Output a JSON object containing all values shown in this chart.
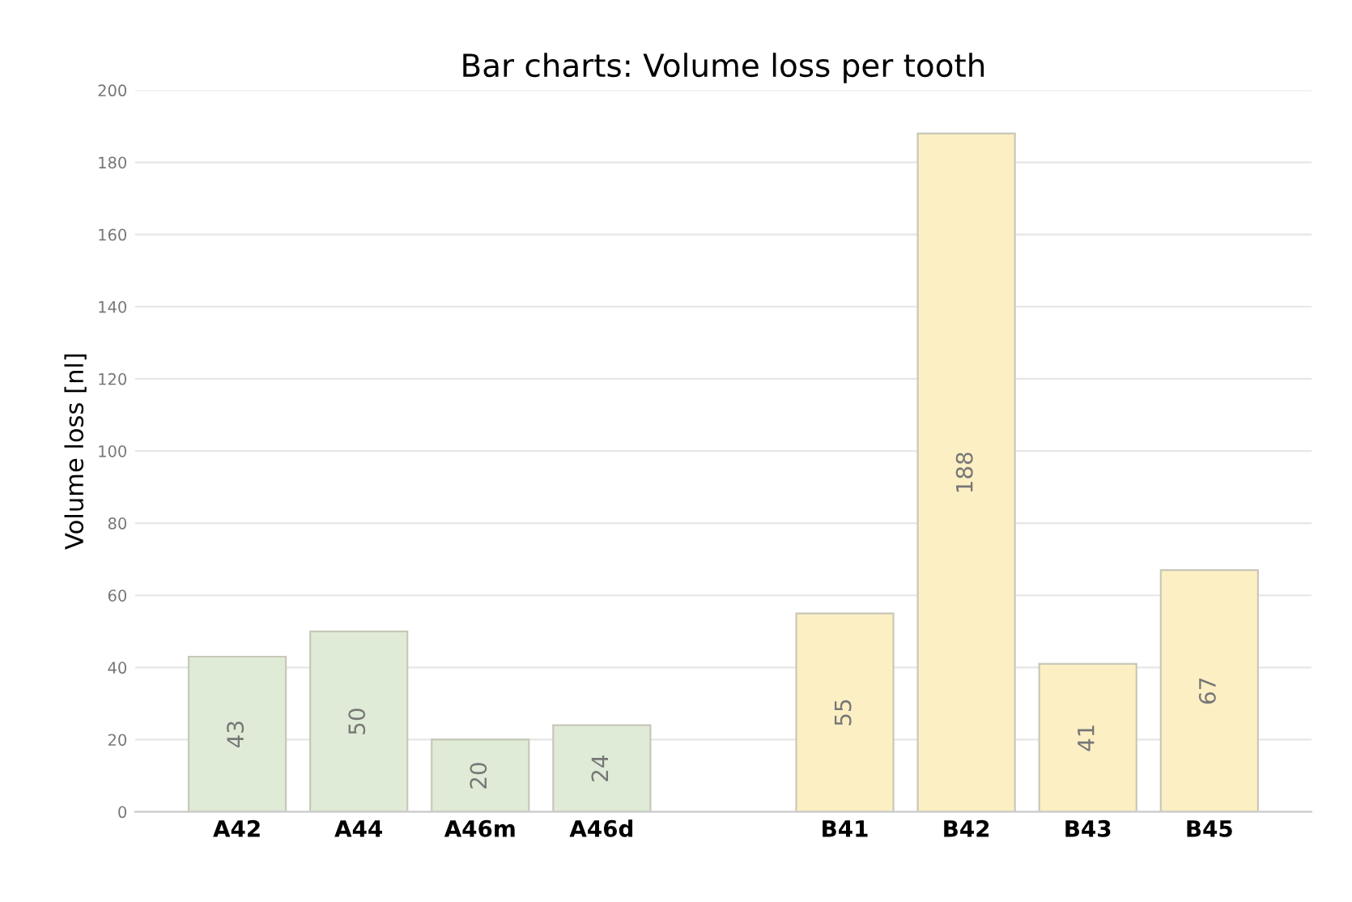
{
  "chart_data": {
    "type": "bar",
    "title": "Bar charts: Volume loss per tooth",
    "ylabel": "Volume loss [nl]",
    "categories": [
      "A42",
      "A44",
      "A46m",
      "A46d",
      null,
      "B41",
      "B42",
      "B43",
      "B45"
    ],
    "values": [
      43,
      50,
      20,
      24,
      null,
      55,
      188,
      41,
      67
    ],
    "colors": [
      "#dfebd6",
      "#dfebd6",
      "#dfebd6",
      "#dfebd6",
      "#ffffff",
      "#fdefc4",
      "#fdefc4",
      "#fdefc4",
      "#fdefc4"
    ],
    "ylim": [
      0,
      200
    ],
    "yticks": [
      0,
      20,
      40,
      60,
      80,
      100,
      120,
      140,
      160,
      180,
      200
    ],
    "grid": "y",
    "data_labels": true
  }
}
